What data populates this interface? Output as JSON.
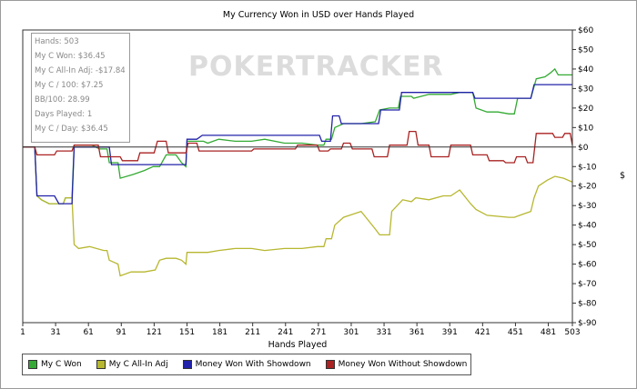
{
  "chart_data": {
    "type": "line",
    "title": "My Currency Won in USD over Hands Played",
    "xlabel": "Hands Played",
    "ylabel": "$",
    "xlim": [
      1,
      503
    ],
    "ylim": [
      -90,
      60
    ],
    "x_ticks": [
      1,
      31,
      61,
      91,
      121,
      151,
      181,
      211,
      241,
      271,
      301,
      331,
      361,
      391,
      421,
      451,
      481,
      503
    ],
    "y_ticks": [
      {
        "value": 60,
        "label": "$60"
      },
      {
        "value": 50,
        "label": "$50"
      },
      {
        "value": 40,
        "label": "$40"
      },
      {
        "value": 30,
        "label": "$30"
      },
      {
        "value": 20,
        "label": "$20"
      },
      {
        "value": 10,
        "label": "$10"
      },
      {
        "value": 0,
        "label": "$0"
      },
      {
        "value": -10,
        "label": "$-10"
      },
      {
        "value": -20,
        "label": "$-20"
      },
      {
        "value": -30,
        "label": "$-30"
      },
      {
        "value": -40,
        "label": "$-40"
      },
      {
        "value": -50,
        "label": "$-50"
      },
      {
        "value": -60,
        "label": "$-60"
      },
      {
        "value": -70,
        "label": "$-70"
      },
      {
        "value": -80,
        "label": "$-80"
      },
      {
        "value": -90,
        "label": "$-90"
      }
    ],
    "grid": false,
    "legend_position": "bottom-left",
    "series": [
      {
        "name": "My C Won",
        "color": "#33aa33",
        "points": [
          [
            1,
            0
          ],
          [
            12,
            0
          ],
          [
            14,
            -25
          ],
          [
            18,
            -27
          ],
          [
            25,
            -29
          ],
          [
            38,
            -29
          ],
          [
            40,
            -26
          ],
          [
            46,
            -26
          ],
          [
            48,
            1
          ],
          [
            58,
            1
          ],
          [
            64,
            1
          ],
          [
            71,
            -1
          ],
          [
            78,
            -1
          ],
          [
            80,
            -8
          ],
          [
            88,
            -8
          ],
          [
            90,
            -16
          ],
          [
            102,
            -14
          ],
          [
            112,
            -12
          ],
          [
            120,
            -10
          ],
          [
            126,
            -10
          ],
          [
            132,
            -4
          ],
          [
            141,
            -4
          ],
          [
            146,
            -8
          ],
          [
            150,
            -10
          ],
          [
            151,
            3
          ],
          [
            166,
            3
          ],
          [
            170,
            2
          ],
          [
            180,
            4
          ],
          [
            195,
            3
          ],
          [
            210,
            3
          ],
          [
            222,
            4
          ],
          [
            240,
            2
          ],
          [
            256,
            2
          ],
          [
            270,
            1
          ],
          [
            276,
            1
          ],
          [
            278,
            4
          ],
          [
            283,
            4
          ],
          [
            286,
            10
          ],
          [
            294,
            12
          ],
          [
            310,
            12
          ],
          [
            323,
            13
          ],
          [
            327,
            19
          ],
          [
            336,
            20
          ],
          [
            344,
            20
          ],
          [
            346,
            26
          ],
          [
            356,
            26
          ],
          [
            358,
            25
          ],
          [
            372,
            27
          ],
          [
            392,
            27
          ],
          [
            400,
            28
          ],
          [
            412,
            28
          ],
          [
            415,
            20
          ],
          [
            425,
            18
          ],
          [
            435,
            18
          ],
          [
            445,
            17
          ],
          [
            450,
            17
          ],
          [
            453,
            25
          ],
          [
            465,
            25
          ],
          [
            470,
            35
          ],
          [
            478,
            36
          ],
          [
            483,
            38
          ],
          [
            487,
            40
          ],
          [
            490,
            37
          ],
          [
            500,
            37
          ],
          [
            503,
            37
          ]
        ]
      },
      {
        "name": "My C All-In Adj",
        "color": "#b7b730",
        "points": [
          [
            1,
            0
          ],
          [
            12,
            0
          ],
          [
            14,
            -25
          ],
          [
            18,
            -27
          ],
          [
            25,
            -29
          ],
          [
            38,
            -29
          ],
          [
            40,
            -26
          ],
          [
            46,
            -26
          ],
          [
            48,
            -50
          ],
          [
            52,
            -52
          ],
          [
            62,
            -51
          ],
          [
            75,
            -53
          ],
          [
            78,
            -53
          ],
          [
            80,
            -58
          ],
          [
            88,
            -60
          ],
          [
            90,
            -66
          ],
          [
            100,
            -64
          ],
          [
            112,
            -64
          ],
          [
            122,
            -63
          ],
          [
            126,
            -58
          ],
          [
            132,
            -57
          ],
          [
            141,
            -57
          ],
          [
            146,
            -58
          ],
          [
            150,
            -60
          ],
          [
            151,
            -54
          ],
          [
            170,
            -54
          ],
          [
            180,
            -53
          ],
          [
            195,
            -52
          ],
          [
            210,
            -52
          ],
          [
            222,
            -53
          ],
          [
            240,
            -52
          ],
          [
            256,
            -52
          ],
          [
            270,
            -51
          ],
          [
            276,
            -51
          ],
          [
            278,
            -47
          ],
          [
            283,
            -47
          ],
          [
            286,
            -40
          ],
          [
            294,
            -36
          ],
          [
            310,
            -33
          ],
          [
            323,
            -42
          ],
          [
            327,
            -45
          ],
          [
            336,
            -45
          ],
          [
            338,
            -33
          ],
          [
            348,
            -27
          ],
          [
            356,
            -28
          ],
          [
            360,
            -26
          ],
          [
            372,
            -27
          ],
          [
            385,
            -25
          ],
          [
            392,
            -25
          ],
          [
            400,
            -22
          ],
          [
            410,
            -29
          ],
          [
            415,
            -32
          ],
          [
            425,
            -35
          ],
          [
            445,
            -36
          ],
          [
            450,
            -36
          ],
          [
            455,
            -35
          ],
          [
            465,
            -33
          ],
          [
            468,
            -26
          ],
          [
            472,
            -20
          ],
          [
            480,
            -17
          ],
          [
            487,
            -15
          ],
          [
            495,
            -16
          ],
          [
            503,
            -18
          ]
        ]
      },
      {
        "name": "Money Won With Showdown",
        "color": "#2222aa",
        "points": [
          [
            1,
            0
          ],
          [
            12,
            0
          ],
          [
            14,
            -25
          ],
          [
            30,
            -25
          ],
          [
            34,
            -29
          ],
          [
            46,
            -29
          ],
          [
            48,
            0
          ],
          [
            80,
            0
          ],
          [
            82,
            -9
          ],
          [
            150,
            -9
          ],
          [
            151,
            4
          ],
          [
            160,
            4
          ],
          [
            165,
            6
          ],
          [
            272,
            6
          ],
          [
            274,
            3
          ],
          [
            282,
            3
          ],
          [
            284,
            16
          ],
          [
            290,
            16
          ],
          [
            292,
            12
          ],
          [
            326,
            12
          ],
          [
            328,
            19
          ],
          [
            345,
            19
          ],
          [
            347,
            28
          ],
          [
            412,
            28
          ],
          [
            414,
            25
          ],
          [
            465,
            25
          ],
          [
            468,
            32
          ],
          [
            503,
            32
          ]
        ]
      },
      {
        "name": "Money Won Without Showdown",
        "color": "#aa2222",
        "points": [
          [
            1,
            0
          ],
          [
            12,
            0
          ],
          [
            14,
            -4
          ],
          [
            30,
            -4
          ],
          [
            32,
            -2
          ],
          [
            46,
            -2
          ],
          [
            48,
            1
          ],
          [
            70,
            1
          ],
          [
            72,
            -5
          ],
          [
            90,
            -5
          ],
          [
            92,
            -7
          ],
          [
            106,
            -7
          ],
          [
            108,
            -3
          ],
          [
            121,
            -3
          ],
          [
            124,
            3
          ],
          [
            132,
            3
          ],
          [
            134,
            -3
          ],
          [
            150,
            -3
          ],
          [
            152,
            2
          ],
          [
            160,
            2
          ],
          [
            162,
            -2
          ],
          [
            210,
            -2
          ],
          [
            212,
            -1
          ],
          [
            250,
            -1
          ],
          [
            252,
            1
          ],
          [
            270,
            1
          ],
          [
            272,
            -2
          ],
          [
            280,
            -2
          ],
          [
            282,
            -1
          ],
          [
            292,
            -1
          ],
          [
            294,
            2
          ],
          [
            300,
            2
          ],
          [
            302,
            -1
          ],
          [
            320,
            -1
          ],
          [
            322,
            -5
          ],
          [
            334,
            -5
          ],
          [
            336,
            1
          ],
          [
            352,
            1
          ],
          [
            354,
            8
          ],
          [
            360,
            8
          ],
          [
            362,
            1
          ],
          [
            372,
            1
          ],
          [
            374,
            -5
          ],
          [
            390,
            -5
          ],
          [
            392,
            1
          ],
          [
            410,
            1
          ],
          [
            412,
            -4
          ],
          [
            425,
            -4
          ],
          [
            427,
            -7
          ],
          [
            440,
            -7
          ],
          [
            442,
            -8
          ],
          [
            450,
            -8
          ],
          [
            452,
            -5
          ],
          [
            460,
            -5
          ],
          [
            462,
            -8
          ],
          [
            467,
            -8
          ],
          [
            470,
            7
          ],
          [
            485,
            7
          ],
          [
            487,
            5
          ],
          [
            494,
            5
          ],
          [
            496,
            7
          ],
          [
            501,
            7
          ],
          [
            503,
            1
          ]
        ]
      }
    ]
  },
  "stats": {
    "lines": [
      "Hands: 503",
      "My C Won: $36.45",
      "My C All-In Adj: -$17.84",
      "My C / 100: $7.25",
      "BB/100: 28.99",
      "Days Played: 1",
      "My C / Day: $36.45"
    ]
  },
  "watermark": "POKERTRACKER",
  "legend": [
    {
      "label": "My C Won",
      "color": "#33aa33"
    },
    {
      "label": "My C All-In Adj",
      "color": "#b7b730"
    },
    {
      "label": "Money Won With Showdown",
      "color": "#2222aa"
    },
    {
      "label": "Money Won Without Showdown",
      "color": "#aa2222"
    }
  ]
}
